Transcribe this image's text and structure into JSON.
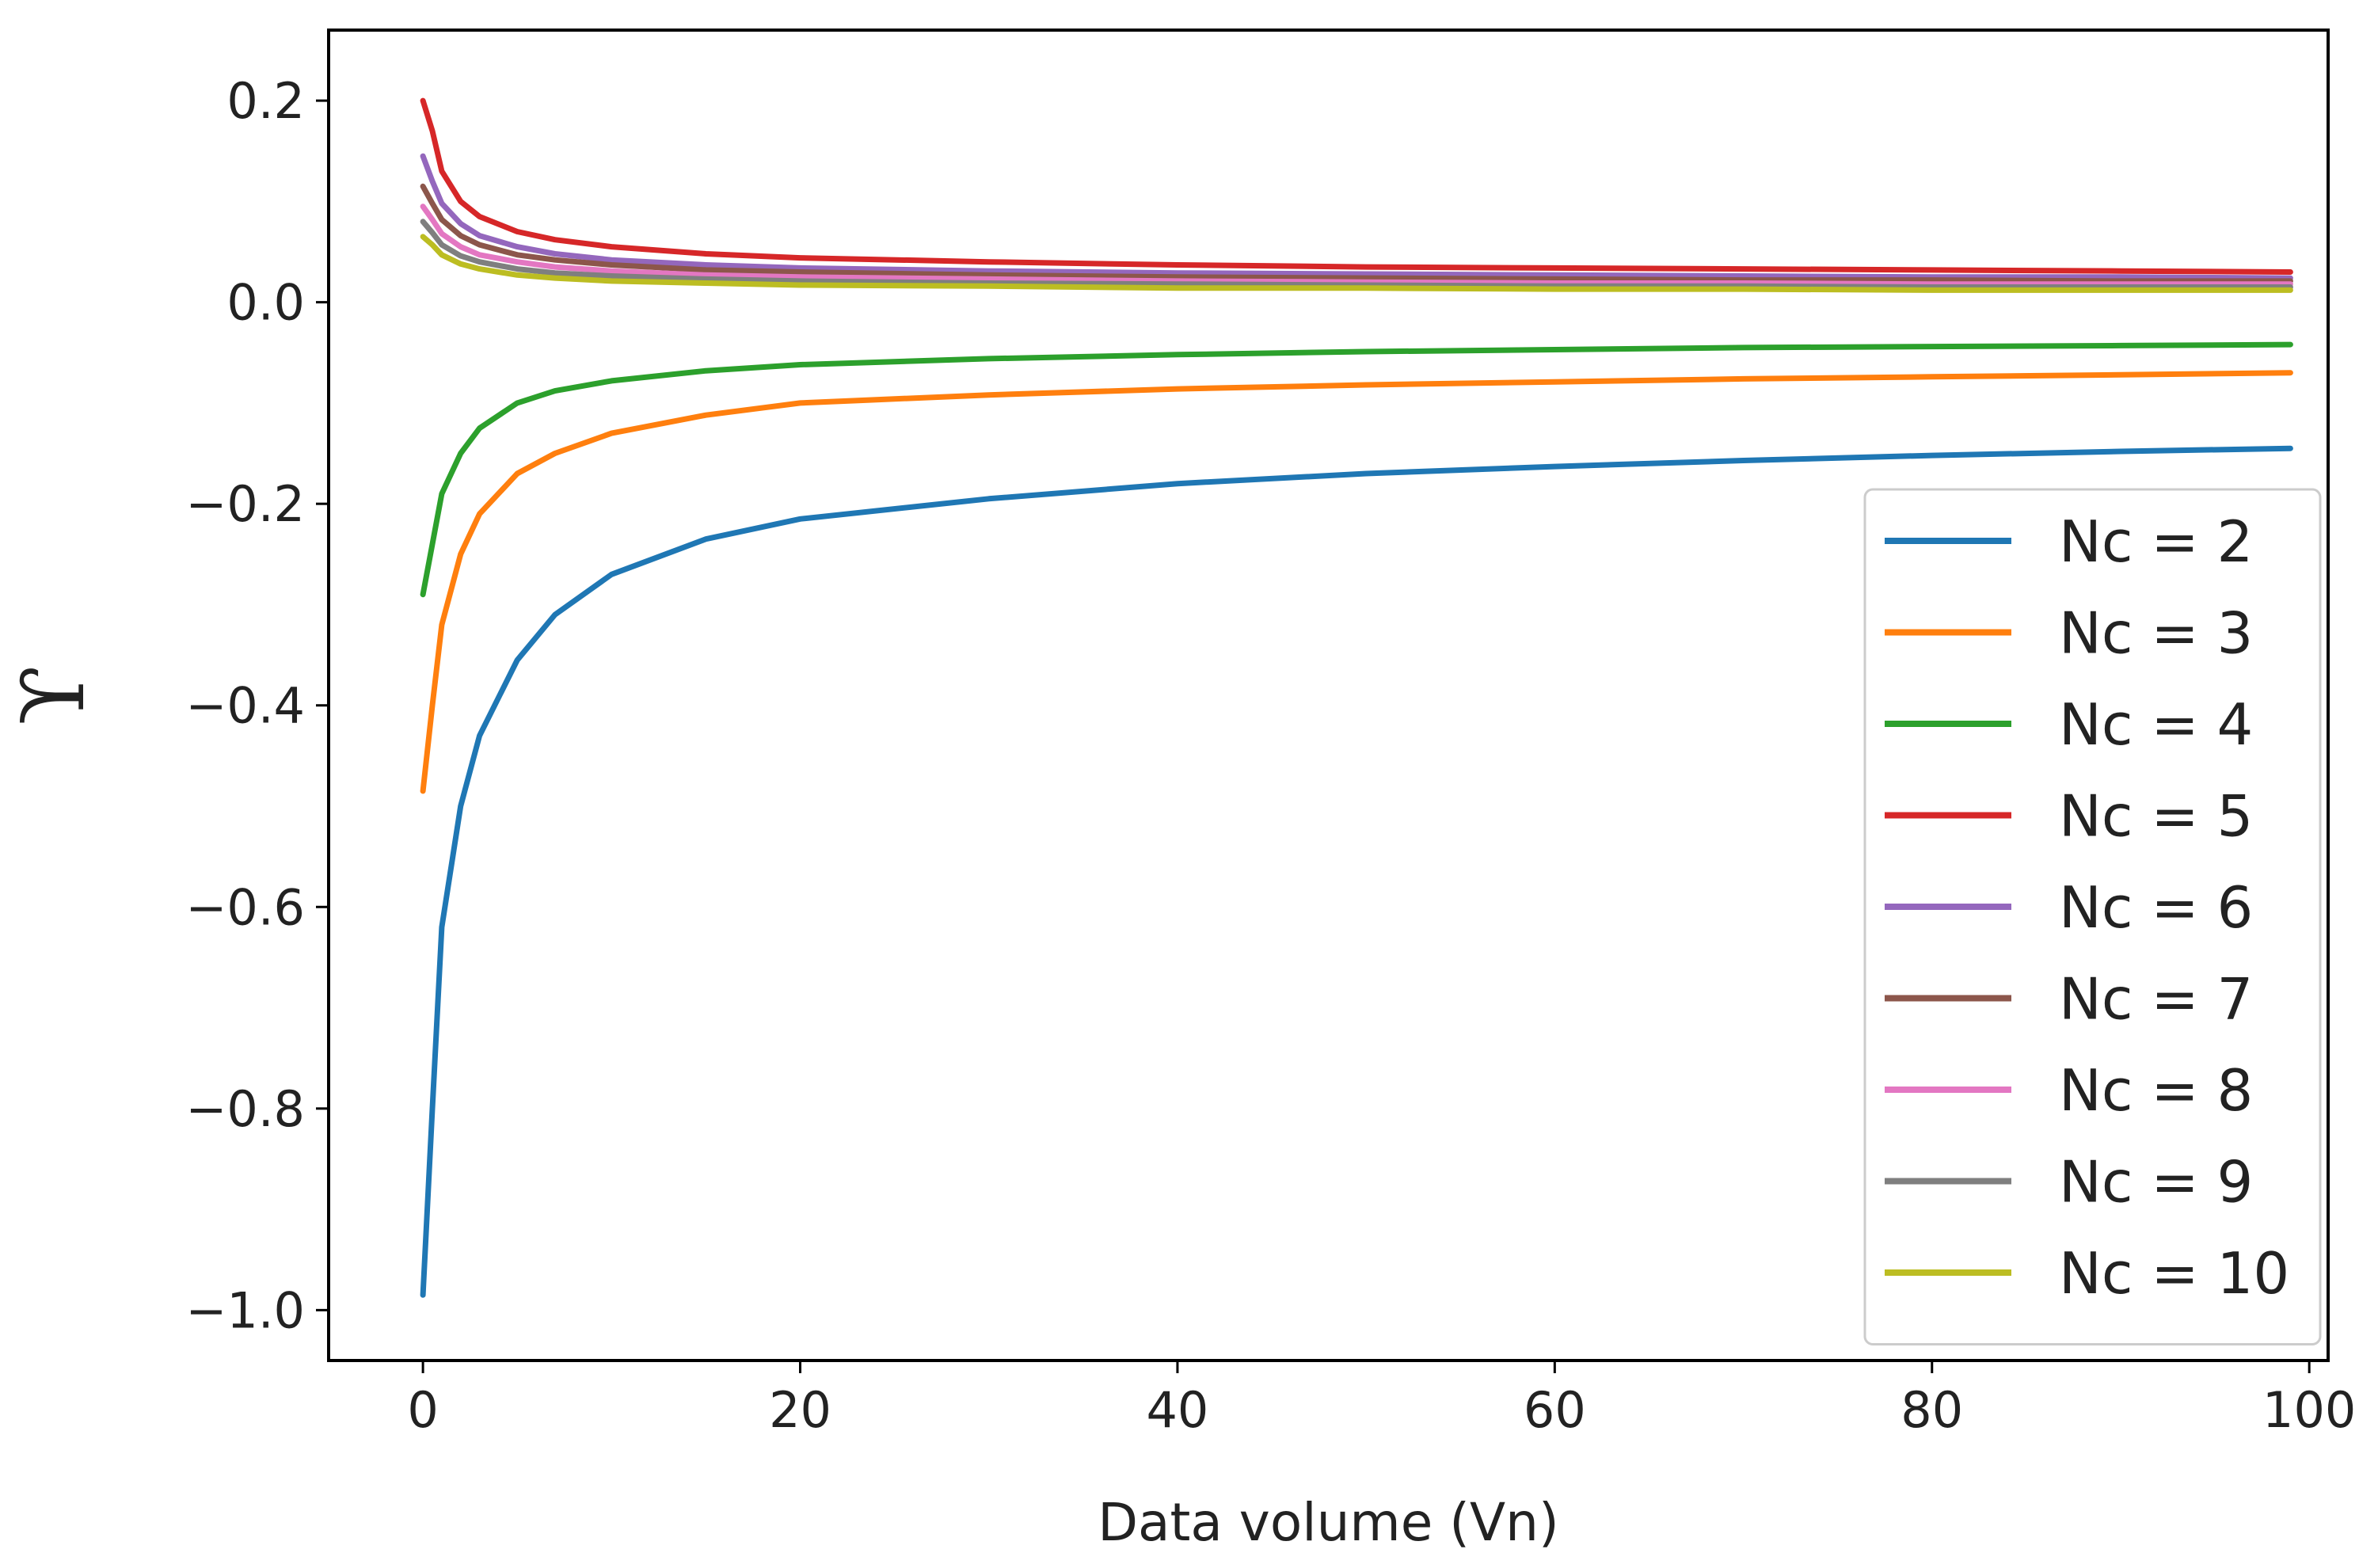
{
  "chart_data": {
    "type": "line",
    "title": "",
    "xlabel": "Data volume (Vn)",
    "ylabel": "ϒ",
    "xlim": [
      -5,
      101
    ],
    "ylim": [
      -1.05,
      0.27
    ],
    "xticks": [
      0,
      20,
      40,
      60,
      80,
      100
    ],
    "yticks": [
      0.2,
      0.0,
      -0.2,
      -0.4,
      -0.6,
      -0.8,
      -1.0
    ],
    "xtick_labels": [
      "0",
      "20",
      "40",
      "60",
      "80",
      "100"
    ],
    "ytick_labels": [
      "0.2",
      "0.0",
      "−0.2",
      "−0.4",
      "−0.6",
      "−0.8",
      "−1.0"
    ],
    "grid": false,
    "legend_position": "lower-right",
    "x": [
      0,
      0.5,
      1,
      2,
      3,
      5,
      7,
      10,
      15,
      20,
      30,
      40,
      50,
      60,
      70,
      80,
      90,
      99
    ],
    "series": [
      {
        "name": "Nc = 2",
        "color": "#1f77b4",
        "values": [
          -0.985,
          -0.8,
          -0.62,
          -0.5,
          -0.43,
          -0.355,
          -0.31,
          -0.27,
          -0.235,
          -0.215,
          -0.195,
          -0.18,
          -0.17,
          -0.163,
          -0.157,
          -0.152,
          -0.148,
          -0.145
        ]
      },
      {
        "name": "Nc = 3",
        "color": "#ff7f0e",
        "values": [
          -0.485,
          -0.4,
          -0.32,
          -0.25,
          -0.21,
          -0.17,
          -0.15,
          -0.13,
          -0.112,
          -0.1,
          -0.092,
          -0.086,
          -0.082,
          -0.079,
          -0.076,
          -0.074,
          -0.072,
          -0.07
        ]
      },
      {
        "name": "Nc = 4",
        "color": "#2ca02c",
        "values": [
          -0.29,
          -0.24,
          -0.19,
          -0.15,
          -0.125,
          -0.1,
          -0.088,
          -0.078,
          -0.068,
          -0.062,
          -0.056,
          -0.052,
          -0.049,
          -0.047,
          -0.045,
          -0.044,
          -0.043,
          -0.042
        ]
      },
      {
        "name": "Nc = 5",
        "color": "#d62728",
        "values": [
          0.2,
          0.17,
          0.13,
          0.1,
          0.085,
          0.07,
          0.062,
          0.055,
          0.048,
          0.044,
          0.04,
          0.037,
          0.035,
          0.034,
          0.033,
          0.032,
          0.031,
          0.03
        ]
      },
      {
        "name": "Nc = 6",
        "color": "#9467bd",
        "values": [
          0.145,
          0.12,
          0.098,
          0.078,
          0.066,
          0.055,
          0.048,
          0.042,
          0.037,
          0.034,
          0.031,
          0.029,
          0.028,
          0.027,
          0.026,
          0.025,
          0.025,
          0.024
        ]
      },
      {
        "name": "Nc = 7",
        "color": "#8c564b",
        "values": [
          0.115,
          0.098,
          0.082,
          0.066,
          0.057,
          0.047,
          0.042,
          0.037,
          0.032,
          0.03,
          0.027,
          0.025,
          0.024,
          0.023,
          0.022,
          0.022,
          0.021,
          0.021
        ]
      },
      {
        "name": "Nc = 8",
        "color": "#e377c2",
        "values": [
          0.095,
          0.082,
          0.068,
          0.055,
          0.047,
          0.04,
          0.035,
          0.031,
          0.027,
          0.025,
          0.023,
          0.021,
          0.02,
          0.019,
          0.019,
          0.018,
          0.018,
          0.018
        ]
      },
      {
        "name": "Nc = 9",
        "color": "#7f7f7f",
        "values": [
          0.08,
          0.069,
          0.057,
          0.046,
          0.04,
          0.033,
          0.029,
          0.026,
          0.023,
          0.021,
          0.019,
          0.018,
          0.017,
          0.016,
          0.016,
          0.015,
          0.015,
          0.015
        ]
      },
      {
        "name": "Nc = 10",
        "color": "#bcbd22",
        "values": [
          0.065,
          0.057,
          0.047,
          0.038,
          0.033,
          0.027,
          0.024,
          0.021,
          0.019,
          0.017,
          0.016,
          0.014,
          0.014,
          0.013,
          0.013,
          0.012,
          0.012,
          0.012
        ]
      }
    ]
  }
}
